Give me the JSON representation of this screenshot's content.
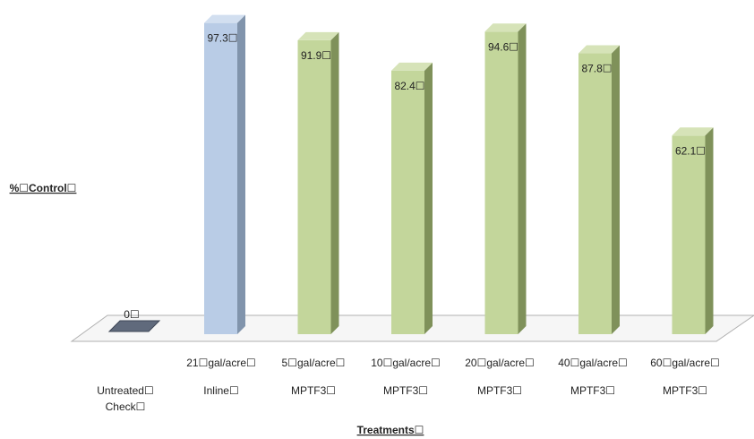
{
  "chart_data": {
    "type": "bar",
    "title": "",
    "xlabel": "Treatments☐",
    "ylabel": "%☐Control☐",
    "ylim": [
      0,
      100
    ],
    "grid": false,
    "legend": "none",
    "style": "3d-column",
    "categories": [
      {
        "line1": "",
        "line2": "Untreated☐",
        "line3": "Check☐"
      },
      {
        "line1": "21☐gal/acre☐",
        "line2": "Inline☐",
        "line3": ""
      },
      {
        "line1": "5☐gal/acre☐",
        "line2": "MPTF3☐",
        "line3": ""
      },
      {
        "line1": "10☐gal/acre☐",
        "line2": "MPTF3☐",
        "line3": ""
      },
      {
        "line1": "20☐gal/acre☐",
        "line2": "MPTF3☐",
        "line3": ""
      },
      {
        "line1": "40☐gal/acre☐",
        "line2": "MPTF3☐",
        "line3": ""
      },
      {
        "line1": "60☐gal/acre☐",
        "line2": "MPTF3☐",
        "line3": ""
      }
    ],
    "values": [
      0,
      97.3,
      91.9,
      82.4,
      94.6,
      87.8,
      62.1
    ],
    "value_labels": [
      "0☐",
      "97.3☐",
      "91.9☐",
      "82.4☐",
      "94.6☐",
      "87.8☐",
      "62.1☐"
    ],
    "colors": {
      "untreated": {
        "front": "#606a7c",
        "side": "#3e4656",
        "top": "#7b8597"
      },
      "inline": {
        "front": "#b9cce6",
        "side": "#8194ac",
        "top": "#d2dff0"
      },
      "mptf3": {
        "front": "#c3d69b",
        "side": "#7f915a",
        "top": "#d6e3b8"
      },
      "floor": "#f6f6f6",
      "floor_edge": "#b0b0b0"
    },
    "bar_color_keys": [
      "untreated",
      "inline",
      "mptf3",
      "mptf3",
      "mptf3",
      "mptf3",
      "mptf3"
    ]
  }
}
